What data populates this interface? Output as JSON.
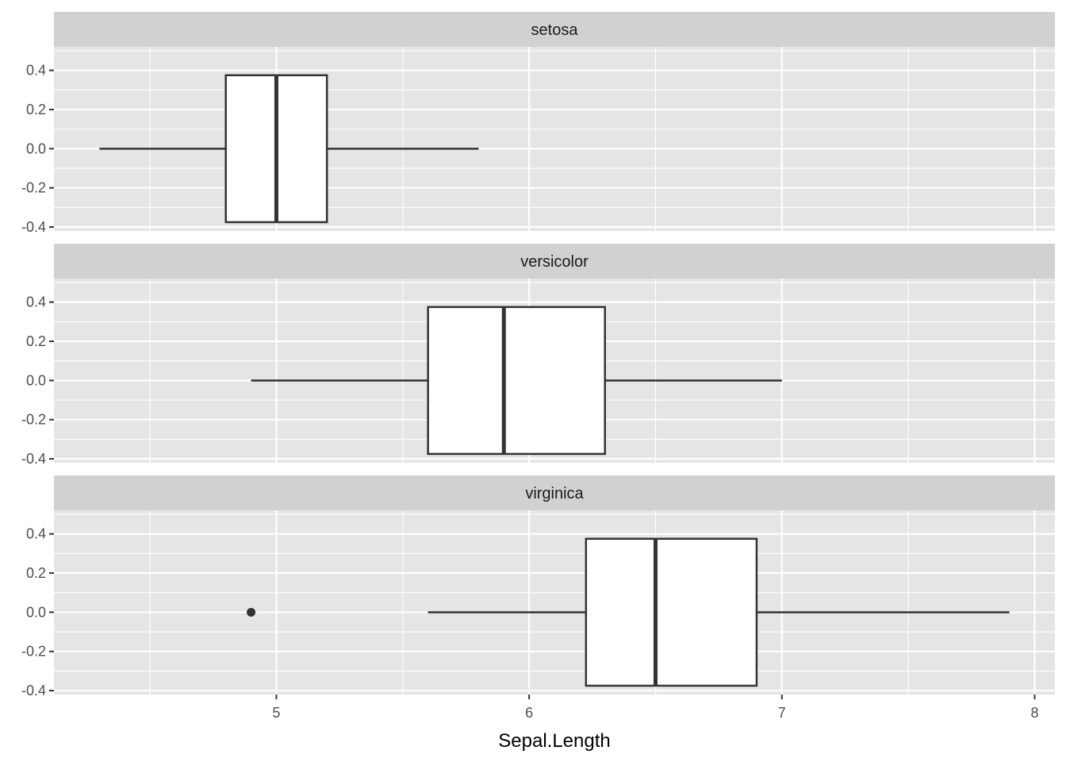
{
  "chart_data": {
    "type": "boxplot",
    "facet_by": "Species",
    "xlabel": "Sepal.Length",
    "ylabel": "",
    "xlim": [
      4.12,
      8.08
    ],
    "ylim": [
      -0.42,
      0.52
    ],
    "x_ticks": [
      5,
      6,
      7,
      8
    ],
    "x_tick_labels": [
      "5",
      "6",
      "7",
      "8"
    ],
    "x_minor_ticks": [
      4.5,
      5.5,
      6.5,
      7.5
    ],
    "y_ticks": [
      -0.4,
      -0.2,
      0.0,
      0.2,
      0.4
    ],
    "y_tick_labels": [
      "-0.4",
      "-0.2",
      "0.0",
      "0.2",
      "0.4"
    ],
    "y_minor_ticks": [
      -0.3,
      -0.1,
      0.1,
      0.3,
      0.5
    ],
    "box_half_height": 0.375,
    "grid": true,
    "colors": {
      "panel_background": "#e5e5e5",
      "strip_background": "#d1d1d1",
      "grid": "#ffffff",
      "box_fill": "#ffffff",
      "box_stroke": "#333333",
      "outlier": "#333333"
    },
    "facets": [
      {
        "label": "setosa",
        "lower_whisker": 4.3,
        "q1": 4.8,
        "median": 5.0,
        "q3": 5.2,
        "upper_whisker": 5.8,
        "outliers": []
      },
      {
        "label": "versicolor",
        "lower_whisker": 4.9,
        "q1": 5.6,
        "median": 5.9,
        "q3": 6.3,
        "upper_whisker": 7.0,
        "outliers": []
      },
      {
        "label": "virginica",
        "lower_whisker": 5.6,
        "q1": 6.225,
        "median": 6.5,
        "q3": 6.9,
        "upper_whisker": 7.9,
        "outliers": [
          4.9
        ]
      }
    ]
  }
}
